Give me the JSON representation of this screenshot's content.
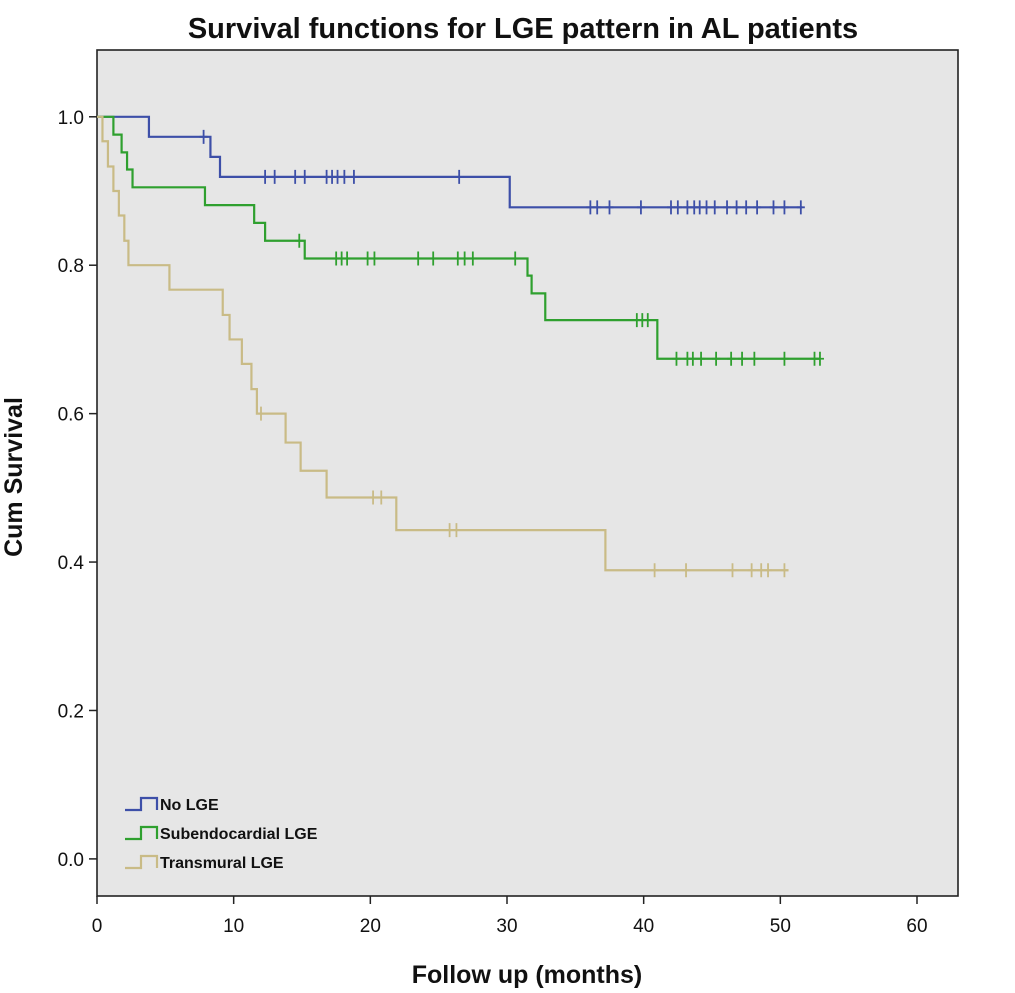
{
  "chart_data": {
    "type": "line",
    "subtype": "kaplan-meier-step",
    "title": "Survival functions for LGE pattern in AL patients",
    "xlabel": "Follow up (months)",
    "ylabel": "Cum Survival",
    "xlim": [
      0,
      63
    ],
    "ylim": [
      -0.05,
      1.09
    ],
    "xticks": [
      0,
      10,
      20,
      30,
      40,
      50,
      60
    ],
    "xtick_labels": [
      "0",
      "10",
      "20",
      "30",
      "40",
      "50",
      "60"
    ],
    "yticks": [
      0.0,
      0.2,
      0.4,
      0.6,
      0.8,
      1.0
    ],
    "ytick_labels": [
      "0.0",
      "0.2",
      "0.4",
      "0.6",
      "0.8",
      "1.0"
    ],
    "grid": false,
    "legend_position": "bottom-left",
    "background": "#e6e6e6",
    "series": [
      {
        "name": "No LGE",
        "color": "#3d4fa8",
        "steps": [
          [
            0,
            1.0
          ],
          [
            3.8,
            0.973
          ],
          [
            8.3,
            0.946
          ],
          [
            9.0,
            0.919
          ],
          [
            30.2,
            0.878
          ],
          [
            51.6,
            0.878
          ]
        ],
        "censored": [
          [
            7.8,
            0.973
          ],
          [
            12.3,
            0.919
          ],
          [
            13.0,
            0.919
          ],
          [
            14.5,
            0.919
          ],
          [
            15.2,
            0.919
          ],
          [
            16.8,
            0.919
          ],
          [
            17.2,
            0.919
          ],
          [
            17.6,
            0.919
          ],
          [
            18.1,
            0.919
          ],
          [
            18.8,
            0.919
          ],
          [
            26.5,
            0.919
          ],
          [
            36.1,
            0.878
          ],
          [
            36.6,
            0.878
          ],
          [
            37.5,
            0.878
          ],
          [
            39.8,
            0.878
          ],
          [
            42.0,
            0.878
          ],
          [
            42.5,
            0.878
          ],
          [
            43.2,
            0.878
          ],
          [
            43.7,
            0.878
          ],
          [
            44.1,
            0.878
          ],
          [
            44.6,
            0.878
          ],
          [
            45.2,
            0.878
          ],
          [
            46.1,
            0.878
          ],
          [
            46.8,
            0.878
          ],
          [
            47.5,
            0.878
          ],
          [
            48.3,
            0.878
          ],
          [
            49.5,
            0.878
          ],
          [
            50.3,
            0.878
          ],
          [
            51.5,
            0.878
          ]
        ]
      },
      {
        "name": "Subendocardial LGE",
        "color": "#2fa02f",
        "steps": [
          [
            0,
            1.0
          ],
          [
            1.2,
            0.976
          ],
          [
            1.8,
            0.952
          ],
          [
            2.2,
            0.929
          ],
          [
            2.6,
            0.905
          ],
          [
            7.9,
            0.881
          ],
          [
            11.5,
            0.857
          ],
          [
            12.3,
            0.833
          ],
          [
            15.2,
            0.809
          ],
          [
            31.5,
            0.786
          ],
          [
            31.8,
            0.762
          ],
          [
            32.8,
            0.726
          ],
          [
            41.0,
            0.674
          ],
          [
            52.9,
            0.674
          ]
        ],
        "censored": [
          [
            14.8,
            0.833
          ],
          [
            17.5,
            0.809
          ],
          [
            17.9,
            0.809
          ],
          [
            18.3,
            0.809
          ],
          [
            19.8,
            0.809
          ],
          [
            20.3,
            0.809
          ],
          [
            23.5,
            0.809
          ],
          [
            24.6,
            0.809
          ],
          [
            26.4,
            0.809
          ],
          [
            26.9,
            0.809
          ],
          [
            27.5,
            0.809
          ],
          [
            30.6,
            0.809
          ],
          [
            39.5,
            0.726
          ],
          [
            39.9,
            0.726
          ],
          [
            40.3,
            0.726
          ],
          [
            42.4,
            0.674
          ],
          [
            43.2,
            0.674
          ],
          [
            43.6,
            0.674
          ],
          [
            44.2,
            0.674
          ],
          [
            45.3,
            0.674
          ],
          [
            46.4,
            0.674
          ],
          [
            47.2,
            0.674
          ],
          [
            48.1,
            0.674
          ],
          [
            50.3,
            0.674
          ],
          [
            52.5,
            0.674
          ],
          [
            52.9,
            0.674
          ]
        ]
      },
      {
        "name": "Transmural LGE",
        "color": "#c9bb86",
        "steps": [
          [
            0,
            1.0
          ],
          [
            0.4,
            0.967
          ],
          [
            0.8,
            0.933
          ],
          [
            1.2,
            0.9
          ],
          [
            1.6,
            0.867
          ],
          [
            2.0,
            0.833
          ],
          [
            2.3,
            0.8
          ],
          [
            5.3,
            0.767
          ],
          [
            9.2,
            0.733
          ],
          [
            9.7,
            0.7
          ],
          [
            10.6,
            0.667
          ],
          [
            11.3,
            0.633
          ],
          [
            11.7,
            0.6
          ],
          [
            13.8,
            0.561
          ],
          [
            14.9,
            0.523
          ],
          [
            16.8,
            0.487
          ],
          [
            21.9,
            0.443
          ],
          [
            37.2,
            0.389
          ],
          [
            50.6,
            0.389
          ]
        ],
        "censored": [
          [
            12.0,
            0.6
          ],
          [
            20.2,
            0.487
          ],
          [
            20.8,
            0.487
          ],
          [
            25.8,
            0.443
          ],
          [
            26.3,
            0.443
          ],
          [
            40.8,
            0.389
          ],
          [
            43.1,
            0.389
          ],
          [
            46.5,
            0.389
          ],
          [
            47.9,
            0.389
          ],
          [
            48.6,
            0.389
          ],
          [
            49.1,
            0.389
          ],
          [
            50.3,
            0.389
          ]
        ]
      }
    ]
  }
}
